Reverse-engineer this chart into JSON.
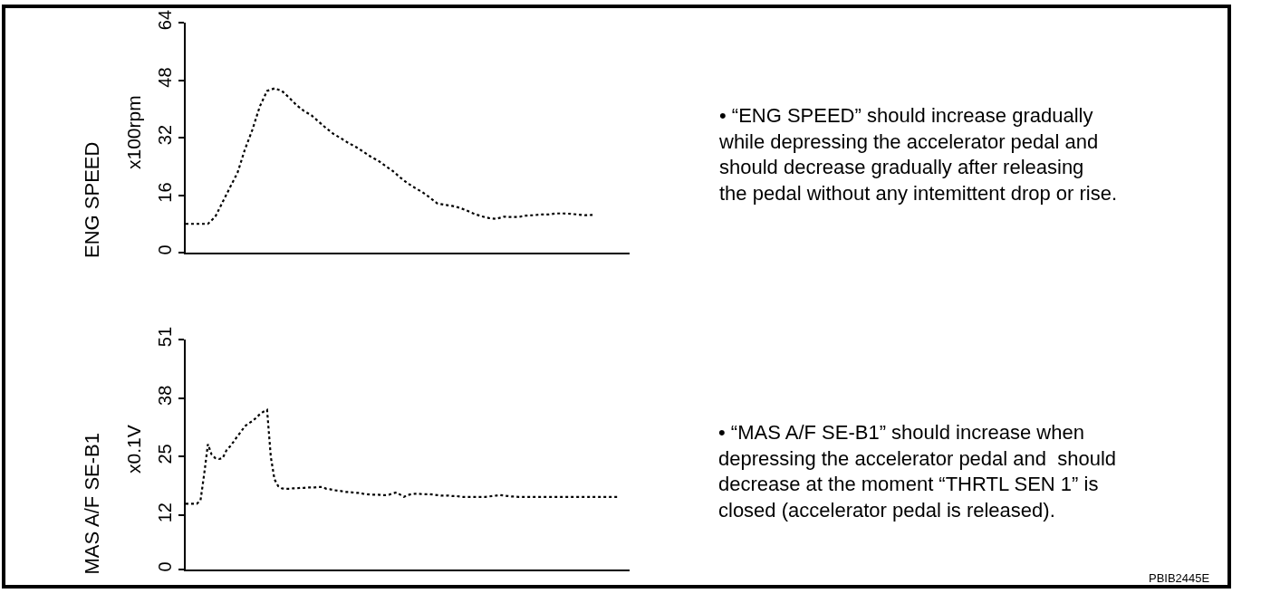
{
  "chart_data": [
    {
      "type": "line",
      "ylabel": "ENG SPEED",
      "annotations": [
        "x100rpm",
        "• “ENG SPEED” should increase gradually\nwhile depressing the accelerator pedal and\nshould decrease gradually after releasing\nthe pedal without any intemittent drop or rise."
      ],
      "categories": [
        null,
        null,
        null,
        null,
        null,
        null,
        null,
        null,
        null,
        null,
        null,
        null,
        null,
        null,
        null,
        null,
        null,
        null,
        null,
        null,
        null,
        null,
        null,
        null,
        null,
        null,
        null,
        null,
        null,
        null,
        null,
        null,
        null,
        null,
        null,
        null,
        null,
        null,
        null,
        null,
        null,
        null,
        null,
        null,
        null,
        null,
        null,
        null,
        null,
        null,
        null,
        null,
        null,
        null,
        null,
        null,
        null,
        null,
        null,
        null,
        null
      ],
      "series": [
        {
          "color": "#000000",
          "values": [
            8,
            8,
            8,
            8,
            10,
            14.1,
            18.2,
            22.2,
            28.7,
            34.1,
            40.6,
            45,
            45.7,
            45,
            43.1,
            41,
            39.4,
            38.2,
            36.4,
            34.6,
            33,
            31.8,
            30.5,
            29.4,
            28.1,
            26.7,
            25.6,
            24.1,
            22.7,
            20.9,
            19.3,
            18,
            16.8,
            15.3,
            13.7,
            13.3,
            13,
            12.5,
            11.7,
            10.8,
            10.1,
            9.6,
            9.4,
            10,
            9.9,
            9.9,
            10.3,
            10.4,
            10.6,
            10.6,
            10.9,
            10.9,
            10.8,
            10.6,
            10.4,
            10.5,
            null,
            null,
            null,
            null,
            null
          ]
        }
      ],
      "ylim": [
        0,
        64
      ],
      "yticks": [
        0,
        16,
        32,
        48,
        64
      ],
      "tick_labels": "y",
      "line_style": "dotted"
    },
    {
      "type": "line",
      "ylabel": "MAS A/F SE-B1",
      "annotations": [
        "x0.1V",
        "• “MAS A/F SE-B1” should increase when\ndepressing the accelerator pedal and  should\ndecrease at the moment “THRTL SEN 1” is\nclosed (accelerator pedal is released).",
        "PBIB2445E"
      ],
      "categories": [
        null,
        null,
        null,
        null,
        null,
        null,
        null,
        null,
        null,
        null,
        null,
        null,
        null,
        null,
        null,
        null,
        null,
        null,
        null,
        null,
        null,
        null,
        null,
        null,
        null,
        null,
        null,
        null,
        null,
        null,
        null,
        null,
        null,
        null,
        null,
        null,
        null,
        null,
        null,
        null,
        null,
        null,
        null,
        null,
        null,
        null,
        null,
        null,
        null,
        null,
        null,
        null,
        null,
        null,
        null,
        null,
        null,
        null,
        null,
        null,
        null,
        null,
        null,
        null,
        null,
        null,
        null,
        null,
        null,
        null,
        null,
        null,
        null,
        null,
        null,
        null,
        null,
        null,
        null,
        null,
        null,
        null,
        null,
        null,
        null,
        null,
        null,
        null,
        null,
        null,
        null,
        null,
        null,
        null,
        null,
        null,
        null,
        null,
        null,
        null,
        null,
        null,
        null,
        null,
        null,
        null,
        null,
        null,
        null,
        null,
        null,
        null,
        null,
        null,
        null,
        null,
        null,
        null,
        null,
        null,
        null
      ],
      "series": [
        {
          "color": "#000000",
          "values": [
            14.6,
            14.6,
            14.6,
            14.6,
            15.3,
            21.2,
            27.8,
            25.5,
            24.7,
            24.5,
            24.7,
            26.4,
            27.3,
            28.4,
            29.6,
            30.6,
            31.8,
            32.4,
            32.9,
            33.6,
            34.4,
            35,
            35.4,
            25,
            20,
            18.5,
            18,
            17.9,
            17.9,
            18,
            18,
            18.1,
            18.1,
            18.2,
            18.2,
            18.2,
            18.3,
            18.3,
            17.9,
            17.8,
            17.6,
            17.5,
            17.4,
            17.2,
            17.2,
            17.1,
            17,
            17,
            16.8,
            16.7,
            16.6,
            16.6,
            16.6,
            16.5,
            16.5,
            16.6,
            16.9,
            17.1,
            16.6,
            16.1,
            16.5,
            16.7,
            16.8,
            16.8,
            16.7,
            16.7,
            16.7,
            16.6,
            16.5,
            16.4,
            16.4,
            16.4,
            16.3,
            16.3,
            16.2,
            16.1,
            16.1,
            16.1,
            16.1,
            16.1,
            16.1,
            16.1,
            16.2,
            16.3,
            16.4,
            16.5,
            16.4,
            16.3,
            16.2,
            16.2,
            16.1,
            16.1,
            16.1,
            16.1,
            16.1,
            16.1,
            16.1,
            16.1,
            16.1,
            16.1,
            16.1,
            16.1,
            16.1,
            16.1,
            16.1,
            16.1,
            16.1,
            16.1,
            16.1,
            16.1,
            16.1,
            16.1,
            16.1,
            16.1,
            16.1,
            16.1,
            16.1,
            16.1,
            null,
            null,
            null
          ]
        }
      ],
      "ylim": [
        0,
        51
      ],
      "yticks": [
        0,
        12,
        25,
        38,
        51
      ],
      "tick_labels": "y",
      "line_style": "dotted"
    }
  ]
}
